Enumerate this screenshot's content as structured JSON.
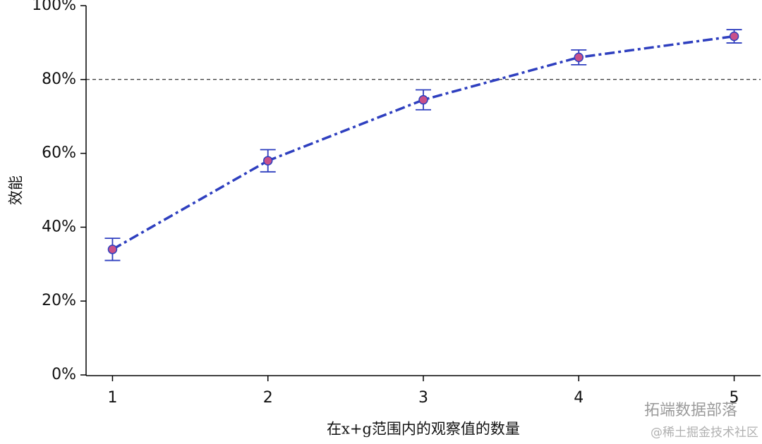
{
  "chart_data": {
    "type": "line",
    "x_label": "在x+g范围内的观察值的数量",
    "y_label": "效能",
    "x": [
      1,
      2,
      3,
      4,
      5
    ],
    "series": [
      {
        "color": "#2e3fbf",
        "marker_color": "#c9508a",
        "values": [
          34,
          58,
          74.5,
          86,
          91.7
        ],
        "errors": [
          3,
          3,
          2.7,
          2,
          1.8
        ]
      }
    ],
    "reference_line": 80,
    "xlim": [
      0.83,
      5.17
    ],
    "ylim": [
      0,
      100
    ],
    "xticks": [
      1,
      2,
      3,
      4,
      5
    ],
    "yticks": [
      {
        "value": 0,
        "label": "0%"
      },
      {
        "value": 20,
        "label": "20%"
      },
      {
        "value": 40,
        "label": "40%"
      },
      {
        "value": 60,
        "label": "60%"
      },
      {
        "value": 80,
        "label": "80%"
      },
      {
        "value": 100,
        "label": "100%"
      }
    ],
    "watermarks": [
      "拓端数据部落",
      "@稀土掘金技术社区"
    ]
  }
}
